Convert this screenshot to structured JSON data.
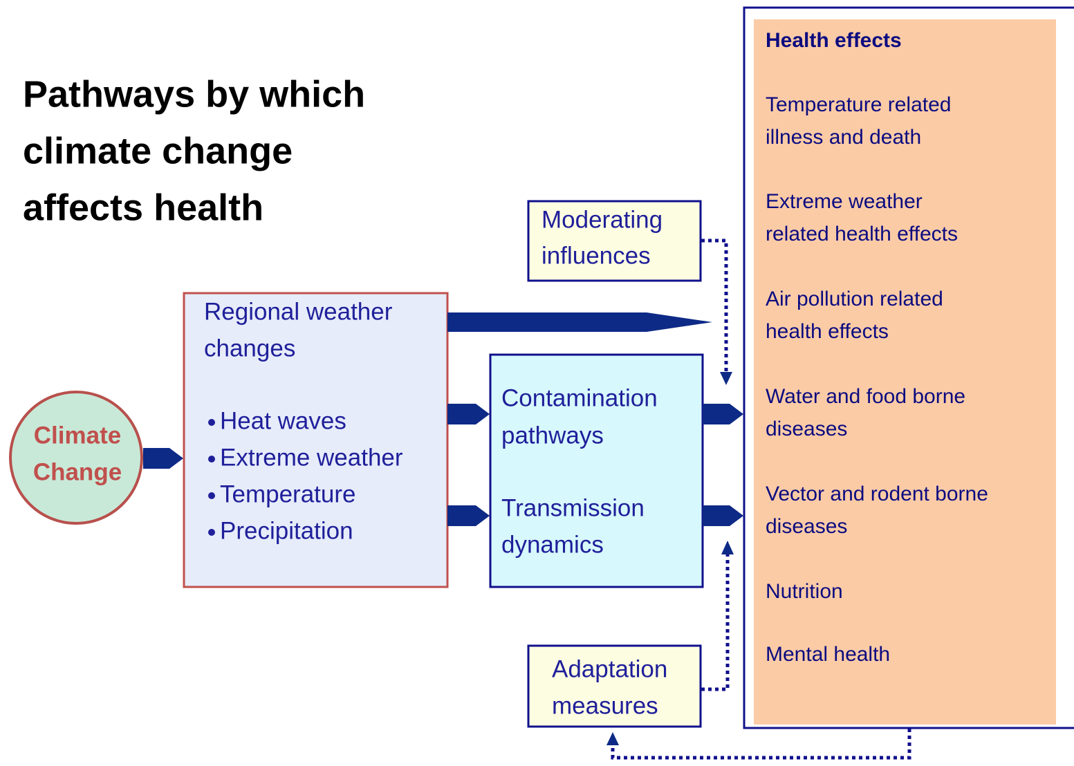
{
  "title": [
    "Pathways by which",
    "climate change",
    "affects health"
  ],
  "nodes": {
    "climate_change": [
      "Climate",
      "Change"
    ],
    "regional_weather": {
      "title": [
        "Regional weather",
        "changes"
      ],
      "bullets": [
        "Heat waves",
        "Extreme weather",
        "Temperature",
        "Precipitation"
      ]
    },
    "moderating_influences": [
      "Moderating",
      "influences"
    ],
    "contamination_pathways": [
      "Contamination",
      "pathways"
    ],
    "transmission_dynamics": [
      "Transmission",
      "dynamics"
    ],
    "adaptation_measures": [
      "Adaptation",
      "measures"
    ],
    "health_effects": {
      "title": "Health effects",
      "items": [
        [
          "Temperature related",
          "illness and death"
        ],
        [
          "Extreme weather",
          "related health effects"
        ],
        [
          "Air pollution related",
          "health effects"
        ],
        [
          "Water and food borne",
          "diseases"
        ],
        [
          "Vector and rodent borne",
          "diseases"
        ],
        [
          "Nutrition"
        ],
        [
          "Mental health"
        ]
      ]
    }
  }
}
